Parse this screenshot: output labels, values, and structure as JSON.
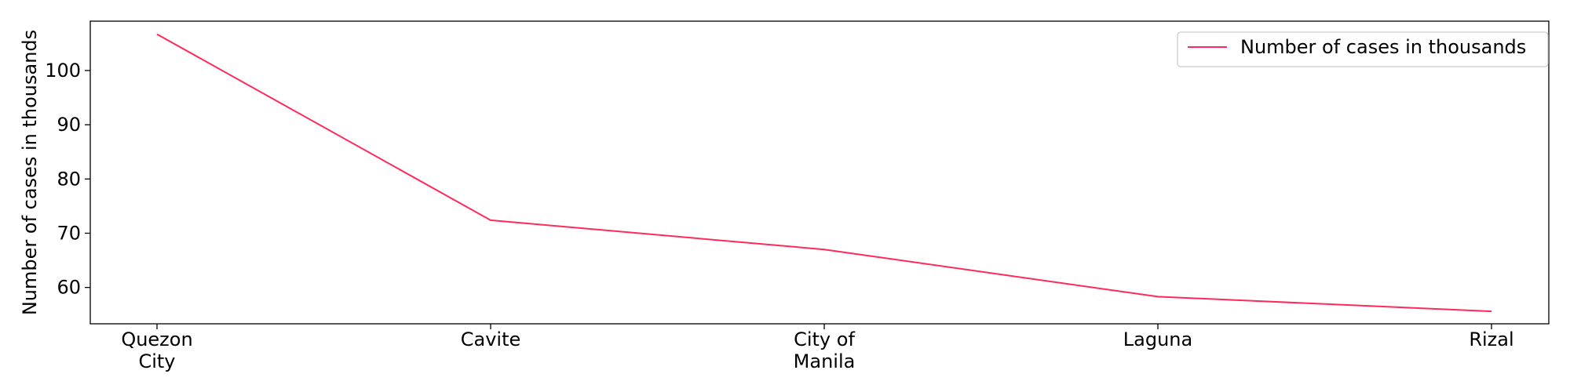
{
  "chart_data": {
    "type": "line",
    "categories": [
      [
        "Quezon",
        "City"
      ],
      [
        "Cavite"
      ],
      [
        "City of",
        "Manila"
      ],
      [
        "Laguna"
      ],
      [
        "Rizal"
      ]
    ],
    "series": [
      {
        "name": "Number of cases in thousands",
        "values": [
          106.7,
          72.4,
          67.0,
          58.3,
          55.6
        ],
        "color": "#ff2a5a"
      }
    ],
    "ylabel": "Number of cases in thousands",
    "ylim": [
      53.3,
      109.1
    ],
    "yticks": [
      60,
      70,
      80,
      90,
      100
    ],
    "grid": false,
    "legend_position": "top-right"
  }
}
